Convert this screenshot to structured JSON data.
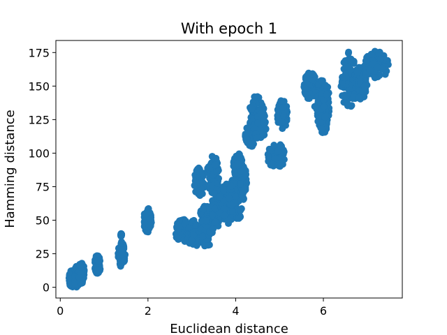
{
  "chart_data": {
    "type": "scatter",
    "title": "With epoch 1",
    "xlabel": "Euclidean distance",
    "ylabel": "Hamming distance",
    "xlim": [
      -0.1,
      7.8
    ],
    "ylim": [
      -8,
      184
    ],
    "xticks": [
      0,
      2,
      4,
      6
    ],
    "yticks": [
      0,
      25,
      50,
      75,
      100,
      125,
      150,
      175
    ],
    "grid": false,
    "marker_color": "#1f77b4",
    "clusters": [
      {
        "x": [
          0.2,
          0.33
        ],
        "y": [
          0,
          13
        ]
      },
      {
        "x": [
          0.32,
          0.45
        ],
        "y": [
          0,
          16
        ]
      },
      {
        "x": [
          0.42,
          0.55
        ],
        "y": [
          2,
          19
        ]
      },
      {
        "x": [
          0.78,
          0.92
        ],
        "y": [
          10,
          24
        ]
      },
      {
        "x": [
          1.32,
          1.48
        ],
        "y": [
          15,
          35
        ]
      },
      {
        "x": [
          1.38,
          1.4
        ],
        "y": [
          38,
          40
        ]
      },
      {
        "x": [
          1.9,
          2.08
        ],
        "y": [
          41,
          59
        ]
      },
      {
        "x": [
          2.62,
          2.95
        ],
        "y": [
          33,
          51
        ]
      },
      {
        "x": [
          2.9,
          3.2
        ],
        "y": [
          30,
          50
        ]
      },
      {
        "x": [
          3.05,
          3.3
        ],
        "y": [
          68,
          89
        ]
      },
      {
        "x": [
          3.15,
          3.5
        ],
        "y": [
          29,
          62
        ]
      },
      {
        "x": [
          3.35,
          3.62
        ],
        "y": [
          70,
          98
        ]
      },
      {
        "x": [
          3.45,
          3.8
        ],
        "y": [
          45,
          75
        ]
      },
      {
        "x": [
          3.62,
          4.0
        ],
        "y": [
          46,
          78
        ]
      },
      {
        "x": [
          3.85,
          4.2
        ],
        "y": [
          50,
          86
        ]
      },
      {
        "x": [
          3.95,
          4.15
        ],
        "y": [
          82,
          100
        ]
      },
      {
        "x": [
          4.1,
          4.25
        ],
        "y": [
          70,
          90
        ]
      },
      {
        "x": [
          4.22,
          4.45
        ],
        "y": [
          104,
          123
        ]
      },
      {
        "x": [
          4.32,
          4.65
        ],
        "y": [
          118,
          143
        ]
      },
      {
        "x": [
          4.4,
          4.7
        ],
        "y": [
          110,
          132
        ]
      },
      {
        "x": [
          4.72,
          5.15
        ],
        "y": [
          89,
          107
        ]
      },
      {
        "x": [
          4.95,
          5.18
        ],
        "y": [
          118,
          140
        ]
      },
      {
        "x": [
          5.55,
          5.85
        ],
        "y": [
          140,
          160
        ]
      },
      {
        "x": [
          5.8,
          6.15
        ],
        "y": [
          120,
          155
        ]
      },
      {
        "x": [
          5.9,
          6.1
        ],
        "y": [
          115,
          135
        ]
      },
      {
        "x": [
          6.4,
          6.75
        ],
        "y": [
          130,
          176
        ]
      },
      {
        "x": [
          6.7,
          7.0
        ],
        "y": [
          140,
          165
        ]
      },
      {
        "x": [
          6.9,
          7.5
        ],
        "y": [
          155,
          176
        ]
      }
    ]
  }
}
